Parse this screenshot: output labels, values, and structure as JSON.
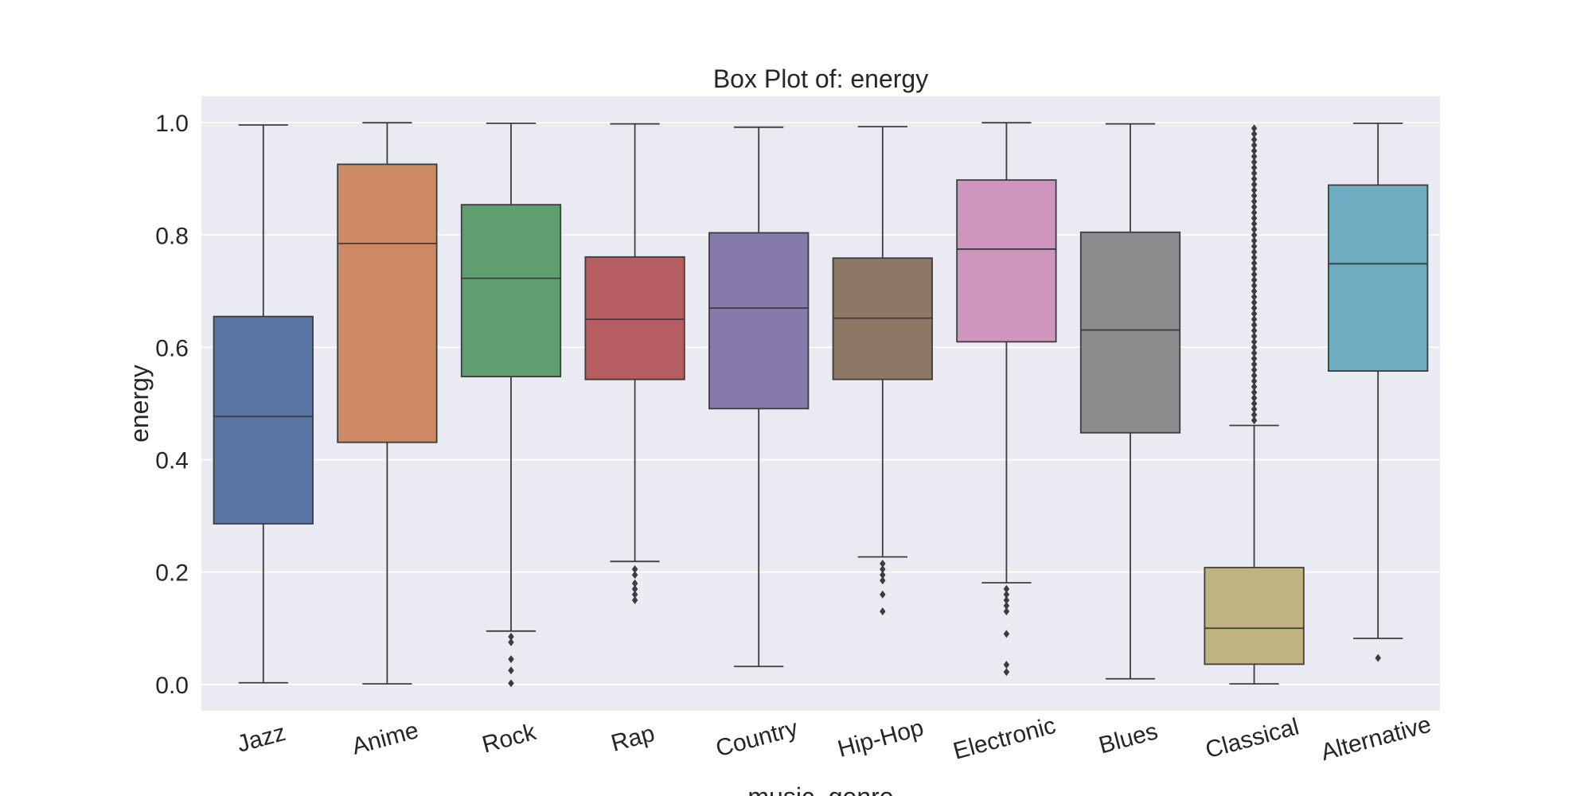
{
  "chart_data": {
    "type": "box",
    "title": "Box Plot of: energy",
    "xlabel": "music_genre",
    "ylabel": "energy",
    "ylim": [
      -0.047,
      1.047
    ],
    "yticks": [
      "0.0",
      "0.2",
      "0.4",
      "0.6",
      "0.8",
      "1.0"
    ],
    "grid": true,
    "categories": [
      {
        "name": "Jazz",
        "color": "#5875a4",
        "whisker_low": 0.003,
        "q1": 0.286,
        "median": 0.477,
        "q3": 0.655,
        "whisker_high": 0.996,
        "outliers": []
      },
      {
        "name": "Anime",
        "color": "#cc8963",
        "whisker_low": 0.001,
        "q1": 0.431,
        "median": 0.785,
        "q3": 0.926,
        "whisker_high": 1.0,
        "outliers": []
      },
      {
        "name": "Rock",
        "color": "#5f9e6e",
        "whisker_low": 0.095,
        "q1": 0.548,
        "median": 0.723,
        "q3": 0.854,
        "whisker_high": 0.999,
        "outliers": [
          0.085,
          0.075,
          0.045,
          0.025,
          0.002
        ]
      },
      {
        "name": "Rap",
        "color": "#b55d60",
        "whisker_low": 0.219,
        "q1": 0.543,
        "median": 0.65,
        "q3": 0.761,
        "whisker_high": 0.998,
        "outliers": [
          0.205,
          0.195,
          0.18,
          0.17,
          0.16,
          0.15
        ]
      },
      {
        "name": "Country",
        "color": "#857aab",
        "whisker_low": 0.032,
        "q1": 0.491,
        "median": 0.67,
        "q3": 0.804,
        "whisker_high": 0.992,
        "outliers": []
      },
      {
        "name": "Hip-Hop",
        "color": "#8d7866",
        "whisker_low": 0.227,
        "q1": 0.543,
        "median": 0.652,
        "q3": 0.759,
        "whisker_high": 0.993,
        "outliers": [
          0.215,
          0.205,
          0.195,
          0.185,
          0.16,
          0.13
        ]
      },
      {
        "name": "Electronic",
        "color": "#d095bf",
        "whisker_low": 0.181,
        "q1": 0.61,
        "median": 0.775,
        "q3": 0.898,
        "whisker_high": 1.0,
        "outliers": [
          0.17,
          0.16,
          0.15,
          0.14,
          0.13,
          0.09,
          0.035,
          0.022
        ]
      },
      {
        "name": "Blues",
        "color": "#8c8c8c",
        "whisker_low": 0.01,
        "q1": 0.448,
        "median": 0.631,
        "q3": 0.805,
        "whisker_high": 0.998,
        "outliers": []
      },
      {
        "name": "Classical",
        "color": "#c1b37f",
        "whisker_low": 0.001,
        "q1": 0.036,
        "median": 0.1,
        "q3": 0.208,
        "whisker_high": 0.461,
        "outliers": [
          0.47,
          0.48,
          0.49,
          0.5,
          0.51,
          0.52,
          0.53,
          0.54,
          0.55,
          0.56,
          0.57,
          0.58,
          0.59,
          0.6,
          0.61,
          0.62,
          0.63,
          0.64,
          0.65,
          0.66,
          0.67,
          0.68,
          0.69,
          0.7,
          0.71,
          0.72,
          0.73,
          0.74,
          0.75,
          0.76,
          0.77,
          0.78,
          0.79,
          0.8,
          0.81,
          0.82,
          0.83,
          0.84,
          0.85,
          0.86,
          0.87,
          0.88,
          0.89,
          0.9,
          0.91,
          0.92,
          0.93,
          0.94,
          0.95,
          0.96,
          0.97,
          0.98,
          0.99
        ]
      },
      {
        "name": "Alternative",
        "color": "#6dacc1",
        "whisker_low": 0.082,
        "q1": 0.558,
        "median": 0.749,
        "q3": 0.889,
        "whisker_high": 0.999,
        "outliers": [
          0.047
        ]
      }
    ]
  },
  "style": {
    "plot_background": "#eaeaf2",
    "grid_color": "#ffffff",
    "line_color": "#3d3d3d",
    "text_color": "#262626"
  }
}
